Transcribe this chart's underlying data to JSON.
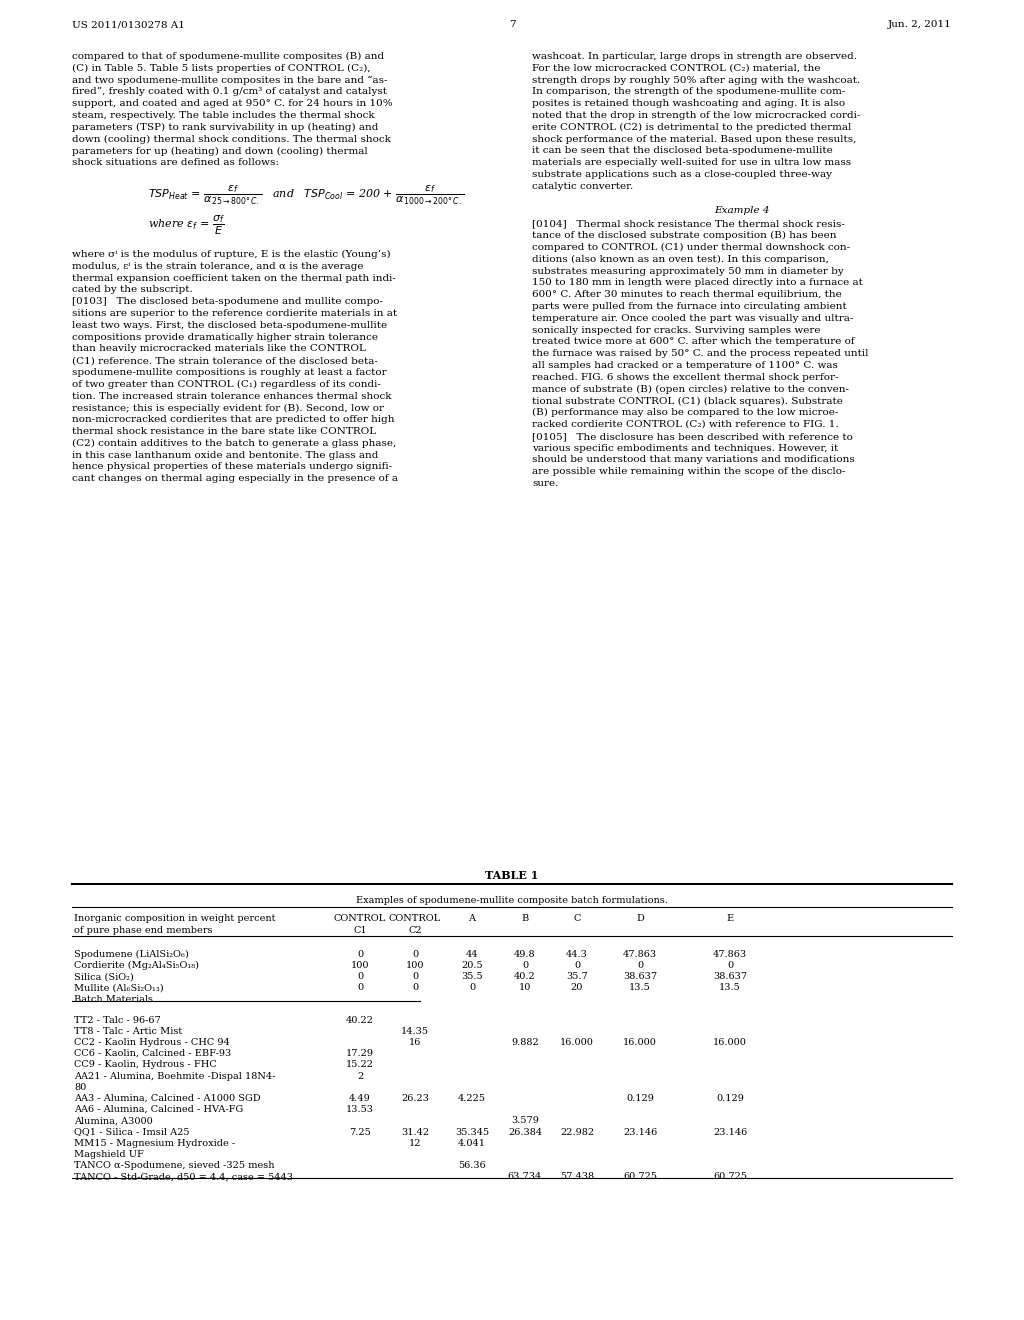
{
  "page_header_left": "US 2011/0130278 A1",
  "page_header_right": "Jun. 2, 2011",
  "page_number": "7",
  "left_col_text": [
    "compared to that of spodumene-mullite composites (B) and",
    "(C) in Table 5. Table 5 lists properties of CONTROL (C₂),",
    "and two spodumene-mullite composites in the bare and “as-",
    "fired”, freshly coated with 0.1 g/cm³ of catalyst and catalyst",
    "support, and coated and aged at 950° C. for 24 hours in 10%",
    "steam, respectively. The table includes the thermal shock",
    "parameters (TSP) to rank survivability in up (heating) and",
    "down (cooling) thermal shock conditions. The thermal shock",
    "parameters for up (heating) and down (cooling) thermal",
    "shock situations are defined as follows:"
  ],
  "left_col_text2": [
    "where σⁱ is the modulus of rupture, E is the elastic (Young’s)",
    "modulus, εⁱ is the strain tolerance, and α is the average",
    "thermal expansion coefficient taken on the thermal path indi-",
    "cated by the subscript.",
    "[0103]   The disclosed beta-spodumene and mullite compo-",
    "sitions are superior to the reference cordierite materials in at",
    "least two ways. First, the disclosed beta-spodumene-mullite",
    "compositions provide dramatically higher strain tolerance",
    "than heavily microcracked materials like the CONTROL",
    "(C1) reference. The strain tolerance of the disclosed beta-",
    "spodumene-mullite compositions is roughly at least a factor",
    "of two greater than CONTROL (C₁) regardless of its condi-",
    "tion. The increased strain tolerance enhances thermal shock",
    "resistance; this is especially evident for (B). Second, low or",
    "non-microcracked cordierites that are predicted to offer high",
    "thermal shock resistance in the bare state like CONTROL",
    "(C2) contain additives to the batch to generate a glass phase,",
    "in this case lanthanum oxide and bentonite. The glass and",
    "hence physical properties of these materials undergo signifi-",
    "cant changes on thermal aging especially in the presence of a"
  ],
  "right_col_text": [
    "washcoat. In particular, large drops in strength are observed.",
    "For the low microcracked CONTROL (C₂) material, the",
    "strength drops by roughly 50% after aging with the washcoat.",
    "In comparison, the strength of the spodumene-mullite com-",
    "posites is retained though washcoating and aging. It is also",
    "noted that the drop in strength of the low microcracked cordi-",
    "erite CONTROL (C2) is detrimental to the predicted thermal",
    "shock performance of the material. Based upon these results,",
    "it can be seen that the disclosed beta-spodumene-mullite",
    "materials are especially well-suited for use in ultra low mass",
    "substrate applications such as a close-coupled three-way",
    "catalytic converter."
  ],
  "example4_title": "Example 4",
  "right_col_text2": [
    "[0104]   Thermal shock resistance The thermal shock resis-",
    "tance of the disclosed substrate composition (B) has been",
    "compared to CONTROL (C1) under thermal downshock con-",
    "ditions (also known as an oven test). In this comparison,",
    "substrates measuring approximately 50 mm in diameter by",
    "150 to 180 mm in length were placed directly into a furnace at",
    "600° C. After 30 minutes to reach thermal equilibrium, the",
    "parts were pulled from the furnace into circulating ambient",
    "temperature air. Once cooled the part was visually and ultra-",
    "sonically inspected for cracks. Surviving samples were",
    "treated twice more at 600° C. after which the temperature of",
    "the furnace was raised by 50° C. and the process repeated until",
    "all samples had cracked or a temperature of 1100° C. was",
    "reached. FIG. 6 shows the excellent thermal shock perfor-",
    "mance of substrate (B) (open circles) relative to the conven-",
    "tional substrate CONTROL (C1) (black squares). Substrate",
    "(B) performance may also be compared to the low microe-",
    "racked cordierite CONTROL (C₂) with reference to FIG. 1.",
    "[0105]   The disclosure has been described with reference to",
    "various specific embodiments and techniques. However, it",
    "should be understood that many variations and modifications",
    "are possible while remaining within the scope of the disclo-",
    "sure."
  ],
  "table_title": "TABLE 1",
  "table_subtitle": "Examples of spodumene-mullite composite batch formulations.",
  "table_header_row1": [
    "Inorganic composition in weight percent",
    "CONTROL",
    "CONTROL",
    "A",
    "B",
    "C",
    "D",
    "E"
  ],
  "table_header_row2": [
    "of pure phase end members",
    "C1",
    "C2",
    "",
    "",
    "",
    "",
    ""
  ],
  "table_rows": [
    [
      "Spodumene (LiAlSi₂O₆)",
      "0",
      "0",
      "44",
      "49.8",
      "44.3",
      "47.863",
      "47.863"
    ],
    [
      "Cordierite (Mg₂Al₄Si₅O₁₈)",
      "100",
      "100",
      "20.5",
      "0",
      "0",
      "0",
      "0"
    ],
    [
      "Silica (SiO₂)",
      "0",
      "0",
      "35.5",
      "40.2",
      "35.7",
      "38.637",
      "38.637"
    ],
    [
      "Mullite (Al₆Si₂O₁₃)",
      "0",
      "0",
      "0",
      "10",
      "20",
      "13.5",
      "13.5"
    ],
    [
      "Batch Materials",
      "",
      "",
      "",
      "",
      "",
      "",
      ""
    ]
  ],
  "table_batch_rows": [
    [
      "TT2 - Talc - 96-67",
      "40.22",
      "",
      "",
      "",
      "",
      "",
      ""
    ],
    [
      "TT8 - Talc - Artic Mist",
      "",
      "14.35",
      "",
      "",
      "",
      "",
      ""
    ],
    [
      "CC2 - Kaolin Hydrous - CHC 94",
      "",
      "16",
      "",
      "9.882",
      "16.000",
      "16.000",
      "16.000"
    ],
    [
      "CC6 - Kaolin, Calcined - EBF-93",
      "17.29",
      "",
      "",
      "",
      "",
      "",
      ""
    ],
    [
      "CC9 - Kaolin, Hydrous - FHC",
      "15.22",
      "",
      "",
      "",
      "",
      "",
      ""
    ],
    [
      "AA21 - Alumina, Boehmite -Dispal 18N4-",
      "2",
      "",
      "",
      "",
      "",
      "",
      ""
    ],
    [
      "80",
      "",
      "",
      "",
      "",
      "",
      "",
      ""
    ],
    [
      "AA3 - Alumina, Calcined - A1000 SGD",
      "4.49",
      "26.23",
      "4.225",
      "",
      "",
      "0.129",
      "0.129"
    ],
    [
      "AA6 - Alumina, Calcined - HVA-FG",
      "13.53",
      "",
      "",
      "",
      "",
      "",
      ""
    ],
    [
      "Alumina, A3000",
      "",
      "",
      "",
      "3.579",
      "",
      "",
      ""
    ],
    [
      "QQ1 - Silica - Imsil A25",
      "7.25",
      "31.42",
      "35.345",
      "26.384",
      "22.982",
      "23.146",
      "23.146"
    ],
    [
      "MM15 - Magnesium Hydroxide -",
      "",
      "12",
      "4.041",
      "",
      "",
      "",
      ""
    ],
    [
      "Magshield UF",
      "",
      "",
      "",
      "",
      "",
      "",
      ""
    ],
    [
      "TANCO α-Spodumene, sieved -325 mesh",
      "",
      "",
      "56.36",
      "",
      "",
      "",
      ""
    ],
    [
      "TANCO - Std-Grade, d50 = 4.4, case = 5443",
      "",
      "",
      "",
      "63.734",
      "57.438",
      "60.725",
      "60.725"
    ]
  ]
}
